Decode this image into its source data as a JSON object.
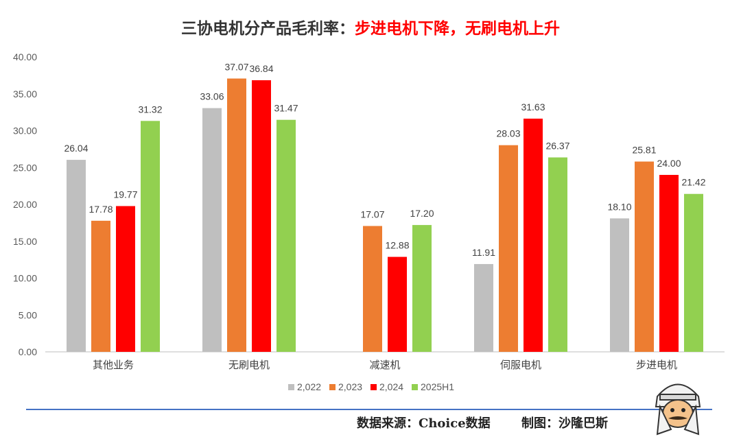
{
  "title": {
    "main": "三协电机分产品毛利率：",
    "highlight": "步进电机下降，无刷电机上升"
  },
  "footer": {
    "source": "数据来源：Choice数据",
    "maker": "制图：沙隆巴斯"
  },
  "colors": {
    "2,022": "#bfbfbf",
    "2,023": "#ed7d31",
    "2,024": "#ff0000",
    "2025H1": "#92d050"
  },
  "chart_data": {
    "type": "bar",
    "categories": [
      "其他业务",
      "无刷电机",
      "减速机",
      "伺服电机",
      "步进电机"
    ],
    "series": [
      {
        "name": "2,022",
        "values": [
          26.04,
          33.06,
          null,
          11.91,
          18.1
        ],
        "labels": [
          "26.04",
          "33.06",
          "",
          "11.91",
          "18.10"
        ]
      },
      {
        "name": "2,023",
        "values": [
          17.78,
          37.07,
          17.07,
          28.03,
          25.81
        ],
        "labels": [
          "17.78",
          "37.07",
          "17.07",
          "28.03",
          "25.81"
        ]
      },
      {
        "name": "2,024",
        "values": [
          19.77,
          36.84,
          12.88,
          31.63,
          24.0
        ],
        "labels": [
          "19.77",
          "36.84",
          "12.88",
          "31.63",
          "24.00"
        ]
      },
      {
        "name": "2025H1",
        "values": [
          31.32,
          31.47,
          17.2,
          26.37,
          21.42
        ],
        "labels": [
          "31.32",
          "31.47",
          "17.20",
          "26.37",
          "21.42"
        ]
      }
    ],
    "ylim": [
      0,
      40
    ],
    "yticks": [
      "0.00",
      "5.00",
      "10.00",
      "15.00",
      "20.00",
      "25.00",
      "30.00",
      "35.00",
      "40.00"
    ],
    "legend": "bottom",
    "grid": false
  }
}
